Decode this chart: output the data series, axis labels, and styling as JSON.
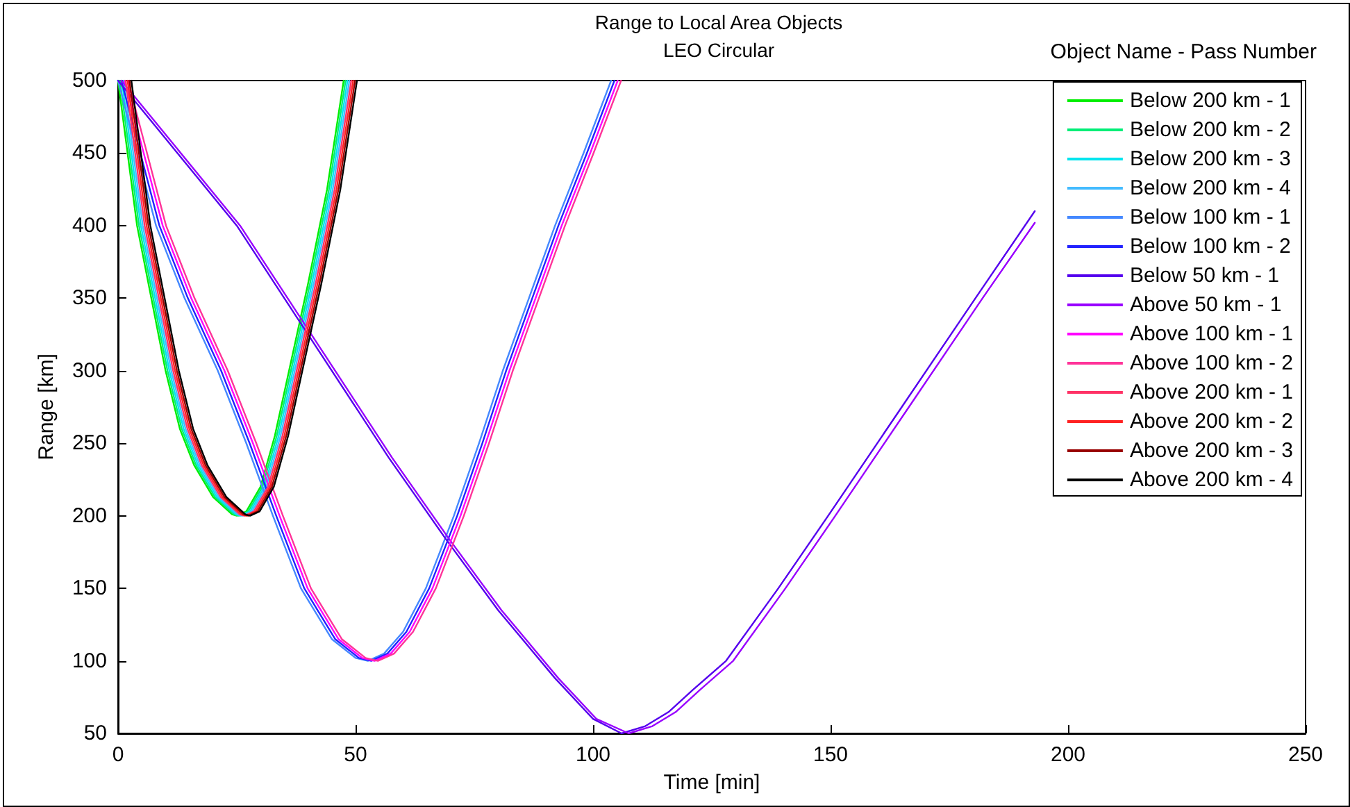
{
  "chart_data": {
    "type": "line",
    "title": "Range to Local Area Objects",
    "subtitle": "LEO Circular",
    "xlabel": "Time [min]",
    "ylabel": "Range [km]",
    "legend_title": "Object Name - Pass Number",
    "legend": "top right",
    "grid": false,
    "xlim": [
      0,
      250
    ],
    "xticks": [
      0,
      50,
      100,
      150,
      200,
      250
    ],
    "ylim": [
      50,
      500
    ],
    "yticks": [
      50,
      100,
      150,
      200,
      250,
      300,
      350,
      400,
      450,
      500
    ],
    "series": [
      {
        "name": "Below 200 km - 1",
        "color": "#00ee00",
        "x": [
          0,
          2,
          4,
          7,
          10,
          13,
          16,
          20,
          24,
          25,
          27,
          30,
          33,
          36,
          40,
          44,
          47.5
        ],
        "values": [
          500,
          450,
          400,
          350,
          300,
          260,
          235,
          213,
          201,
          200,
          203,
          220,
          255,
          300,
          360,
          425,
          500
        ]
      },
      {
        "name": "Below 200 km - 2",
        "color": "#00ee77",
        "x": [
          0.4,
          2.4,
          4.4,
          7.4,
          10.4,
          13.4,
          16.4,
          20.4,
          24.4,
          25.4,
          27.4,
          30.4,
          33.4,
          36.4,
          40.4,
          44.4,
          47.9
        ],
        "values": [
          500,
          450,
          400,
          350,
          300,
          260,
          235,
          213,
          201,
          200,
          203,
          220,
          255,
          300,
          360,
          425,
          500
        ]
      },
      {
        "name": "Below 200 km - 3",
        "color": "#00e5ee",
        "x": [
          0.8,
          2.8,
          4.8,
          7.8,
          10.8,
          13.8,
          16.8,
          20.8,
          24.8,
          25.8,
          27.8,
          30.8,
          33.8,
          36.8,
          40.8,
          44.8,
          48.3
        ],
        "values": [
          500,
          450,
          400,
          350,
          300,
          260,
          235,
          213,
          201,
          200,
          203,
          220,
          255,
          300,
          360,
          425,
          500
        ]
      },
      {
        "name": "Below 200 km - 4",
        "color": "#44bbff",
        "x": [
          1.2,
          3.2,
          5.2,
          8.2,
          11.2,
          14.2,
          17.2,
          21.2,
          25.2,
          26.2,
          28.2,
          31.2,
          34.2,
          37.2,
          41.2,
          45.2,
          48.7
        ],
        "values": [
          500,
          450,
          400,
          350,
          300,
          260,
          235,
          213,
          201,
          200,
          203,
          220,
          255,
          300,
          360,
          425,
          500
        ]
      },
      {
        "name": "Below 100 km - 1",
        "color": "#4488ff",
        "x": [
          0,
          4,
          8,
          14,
          21,
          27,
          32.6,
          38.5,
          45,
          50,
          52.6,
          56,
          60,
          64.8,
          70.7,
          76,
          81,
          86.5,
          92,
          98,
          103.8
        ],
        "values": [
          500,
          450,
          400,
          350,
          300,
          250,
          200,
          150,
          115,
          102,
          100,
          105,
          120,
          150,
          200,
          250,
          300,
          350,
          400,
          450,
          500
        ]
      },
      {
        "name": "Below 100 km - 2",
        "color": "#2222ff",
        "x": [
          0.7,
          4.7,
          8.7,
          14.7,
          21.7,
          27.7,
          33.3,
          39.2,
          45.7,
          50.7,
          53.3,
          56.7,
          60.7,
          65.5,
          71.4,
          76.7,
          81.7,
          87.2,
          92.7,
          98.7,
          104.5
        ],
        "values": [
          500,
          450,
          400,
          350,
          300,
          250,
          200,
          150,
          115,
          102,
          100,
          105,
          120,
          150,
          200,
          250,
          300,
          350,
          400,
          450,
          500
        ]
      },
      {
        "name": "Below 50 km - 1",
        "color": "#5500ee",
        "x": [
          0,
          10,
          25,
          40,
          57,
          69,
          80,
          92,
          100,
          106,
          111,
          116,
          121,
          128,
          139,
          149.5,
          165,
          180.5,
          193
        ],
        "values": [
          500,
          460,
          400,
          325,
          240,
          184,
          135,
          88,
          60,
          50,
          55,
          65,
          80,
          100,
          150,
          200,
          275,
          350,
          410
        ]
      },
      {
        "name": "Above 50 km - 1",
        "color": "#9900ff",
        "x": [
          0.7,
          10.7,
          25.7,
          40.7,
          57.7,
          69.7,
          80.7,
          92.7,
          100.7,
          107.5,
          112.5,
          117.5,
          122.5,
          129.5,
          140.5,
          151,
          166.5,
          182,
          193
        ],
        "values": [
          500,
          460,
          400,
          325,
          240,
          184,
          135,
          88,
          60,
          50,
          55,
          65,
          80,
          100,
          150,
          200,
          275,
          350,
          402
        ]
      },
      {
        "name": "Above 100 km - 1",
        "color": "#ff00ff",
        "x": [
          1.4,
          5.4,
          9.4,
          15.4,
          22.4,
          28.4,
          34,
          39.9,
          46.4,
          51.4,
          54,
          57.4,
          61.4,
          66.2,
          72.1,
          77.4,
          82.4,
          87.9,
          93.4,
          99.4,
          105.2
        ],
        "values": [
          500,
          450,
          400,
          350,
          300,
          250,
          200,
          150,
          115,
          102,
          100,
          105,
          120,
          150,
          200,
          250,
          300,
          350,
          400,
          450,
          500
        ]
      },
      {
        "name": "Above 100 km - 2",
        "color": "#ff3399",
        "x": [
          2.1,
          6.1,
          10.1,
          16.1,
          23.1,
          29.1,
          34.7,
          40.6,
          47.1,
          52.1,
          54.7,
          58.1,
          62.1,
          66.9,
          72.8,
          78.1,
          83.1,
          88.6,
          94.1,
          100.1,
          105.9
        ],
        "values": [
          500,
          450,
          400,
          350,
          300,
          250,
          200,
          150,
          115,
          102,
          100,
          105,
          120,
          150,
          200,
          250,
          300,
          350,
          400,
          450,
          500
        ]
      },
      {
        "name": "Above 200 km - 1",
        "color": "#ff3366",
        "x": [
          1.6,
          3.6,
          5.6,
          8.6,
          11.6,
          14.6,
          17.6,
          21.6,
          25.6,
          26.6,
          28.6,
          31.6,
          34.6,
          37.6,
          41.6,
          45.6,
          49.1
        ],
        "values": [
          500,
          450,
          400,
          350,
          300,
          260,
          235,
          213,
          201,
          200,
          203,
          220,
          255,
          300,
          360,
          425,
          500
        ]
      },
      {
        "name": "Above 200 km - 2",
        "color": "#ff2222",
        "x": [
          2,
          4,
          6,
          9,
          12,
          15,
          18,
          22,
          26,
          27,
          29,
          32,
          35,
          38,
          42,
          46,
          49.5
        ],
        "values": [
          500,
          450,
          400,
          350,
          300,
          260,
          235,
          213,
          201,
          200,
          203,
          220,
          255,
          300,
          360,
          425,
          500
        ]
      },
      {
        "name": "Above 200 km - 3",
        "color": "#990000",
        "x": [
          2.4,
          4.4,
          6.4,
          9.4,
          12.4,
          15.4,
          18.4,
          22.4,
          26.4,
          27.4,
          29.4,
          32.4,
          35.4,
          38.4,
          42.4,
          46.4,
          49.9
        ],
        "values": [
          500,
          450,
          400,
          350,
          300,
          260,
          235,
          213,
          201,
          200,
          203,
          220,
          255,
          300,
          360,
          425,
          500
        ]
      },
      {
        "name": "Above 200 km - 4",
        "color": "#000000",
        "x": [
          2.8,
          4.8,
          6.8,
          9.8,
          12.8,
          15.8,
          18.8,
          22.8,
          26.8,
          27.8,
          29.8,
          32.8,
          35.8,
          38.8,
          42.8,
          46.8,
          50.3
        ],
        "values": [
          500,
          450,
          400,
          350,
          300,
          260,
          235,
          213,
          201,
          200,
          203,
          220,
          255,
          300,
          360,
          425,
          500
        ]
      }
    ]
  }
}
